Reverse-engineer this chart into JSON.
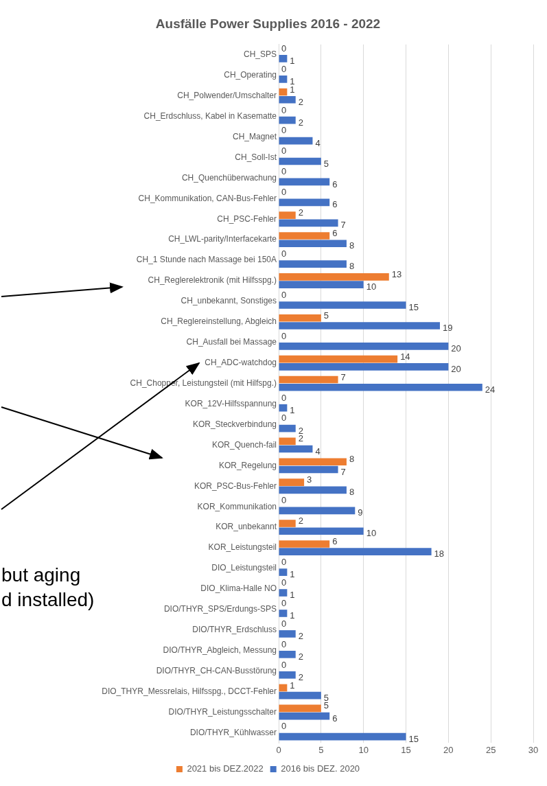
{
  "chart_data": {
    "type": "bar",
    "orientation": "horizontal",
    "title": "Ausfälle Power Supplies 2016 - 2022",
    "categories": [
      "CH_SPS",
      "CH_Operating",
      "CH_Polwender/Umschalter",
      "CH_Erdschluss, Kabel in Kasematte",
      "CH_Magnet",
      "CH_Soll-Ist",
      "CH_Quenchüberwachung",
      "CH_Kommunikation, CAN-Bus-Fehler",
      "CH_PSC-Fehler",
      "CH_LWL-parity/Interfacekarte",
      "CH_1 Stunde nach Massage bei 150A",
      "CH_Reglerelektronik (mit Hilfsspg.)",
      "CH_unbekannt, Sonstiges",
      "CH_Reglereinstellung, Abgleich",
      "CH_Ausfall bei Massage",
      "CH_ADC-watchdog",
      "CH_Chopper, Leistungsteil (mit Hilfspg.)",
      "KOR_12V-Hilfsspannung",
      "KOR_Steckverbindung",
      "KOR_Quench-fail",
      "KOR_Regelung",
      "KOR_PSC-Bus-Fehler",
      "KOR_Kommunikation",
      "KOR_unbekannt",
      "KOR_Leistungsteil",
      "DIO_Leistungsteil",
      "DIO_Klima-Halle NO",
      "DIO/THYR_SPS/Erdungs-SPS",
      "DIO/THYR_Erdschluss",
      "DIO/THYR_Abgleich, Messung",
      "DIO/THYR_CH-CAN-Busstörung",
      "DIO_THYR_Messrelais, Hilfsspg., DCCT-Fehler",
      "DIO/THYR_Leistungsschalter",
      "DIO/THYR_Kühlwasser"
    ],
    "series": [
      {
        "name": "2021 bis DEZ.2022",
        "color": "#ed7d31",
        "values": [
          0,
          0,
          1,
          0,
          0,
          0,
          0,
          0,
          2,
          6,
          0,
          13,
          0,
          5,
          0,
          14,
          7,
          0,
          0,
          2,
          8,
          3,
          0,
          2,
          6,
          0,
          0,
          0,
          0,
          0,
          0,
          1,
          5,
          0
        ]
      },
      {
        "name": "2016 bis DEZ. 2020",
        "color": "#4472c4",
        "values": [
          1,
          1,
          2,
          2,
          4,
          5,
          6,
          6,
          7,
          8,
          8,
          10,
          15,
          19,
          20,
          20,
          24,
          1,
          2,
          4,
          7,
          8,
          9,
          10,
          18,
          1,
          1,
          1,
          2,
          2,
          2,
          5,
          6,
          15
        ]
      }
    ],
    "xlim": [
      0,
      30
    ],
    "xticks": [
      0,
      5,
      10,
      15,
      20,
      25,
      30
    ],
    "grid": "x",
    "legend": "bottom",
    "data_labels": true,
    "annotations": [
      "but aging",
      "d installed)"
    ]
  }
}
